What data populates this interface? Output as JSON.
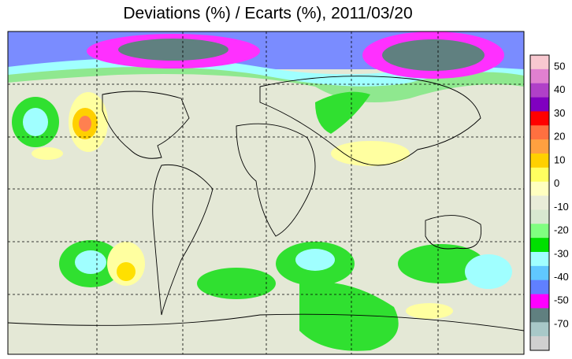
{
  "title": "Deviations (%) / Ecarts (%), 2011/03/20",
  "colorbar": {
    "labels": [
      50,
      40,
      30,
      20,
      10,
      0,
      -10,
      -20,
      -30,
      -40,
      -50,
      -70
    ],
    "colors": [
      "#f8c8d0",
      "#e080d0",
      "#b040c8",
      "#8000c0",
      "#ff0000",
      "#ff7040",
      "#ffa040",
      "#ffd000",
      "#ffff60",
      "#ffffc0",
      "#e8ecd8",
      "#d8e8d0",
      "#80ff80",
      "#00e000",
      "#a0ffff",
      "#60c8ff",
      "#6080ff",
      "#ff00ff",
      "#608080",
      "#a8c8c8",
      "#d0d0d0"
    ]
  }
}
